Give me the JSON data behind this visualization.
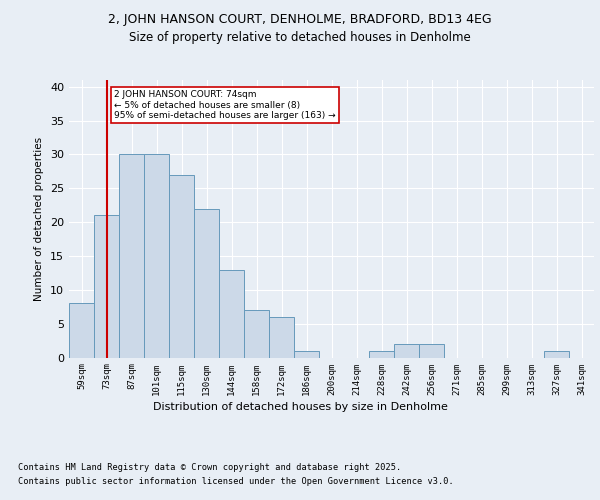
{
  "title1": "2, JOHN HANSON COURT, DENHOLME, BRADFORD, BD13 4EG",
  "title2": "Size of property relative to detached houses in Denholme",
  "xlabel": "Distribution of detached houses by size in Denholme",
  "ylabel": "Number of detached properties",
  "bins": [
    "59sqm",
    "73sqm",
    "87sqm",
    "101sqm",
    "115sqm",
    "130sqm",
    "144sqm",
    "158sqm",
    "172sqm",
    "186sqm",
    "200sqm",
    "214sqm",
    "228sqm",
    "242sqm",
    "256sqm",
    "271sqm",
    "285sqm",
    "299sqm",
    "313sqm",
    "327sqm",
    "341sqm"
  ],
  "values": [
    8,
    21,
    30,
    30,
    27,
    22,
    13,
    7,
    6,
    1,
    0,
    0,
    1,
    2,
    2,
    0,
    0,
    0,
    0,
    1,
    0
  ],
  "bar_color": "#ccd9e8",
  "bar_edge_color": "#6699bb",
  "marker_line_color": "#cc0000",
  "annotation_text": "2 JOHN HANSON COURT: 74sqm\n← 5% of detached houses are smaller (8)\n95% of semi-detached houses are larger (163) →",
  "annotation_box_color": "#ffffff",
  "annotation_box_edge": "#cc0000",
  "ylim": [
    0,
    41
  ],
  "yticks": [
    0,
    5,
    10,
    15,
    20,
    25,
    30,
    35,
    40
  ],
  "footer1": "Contains HM Land Registry data © Crown copyright and database right 2025.",
  "footer2": "Contains public sector information licensed under the Open Government Licence v3.0.",
  "bg_color": "#e8eef5",
  "plot_bg_color": "#e8eef5"
}
